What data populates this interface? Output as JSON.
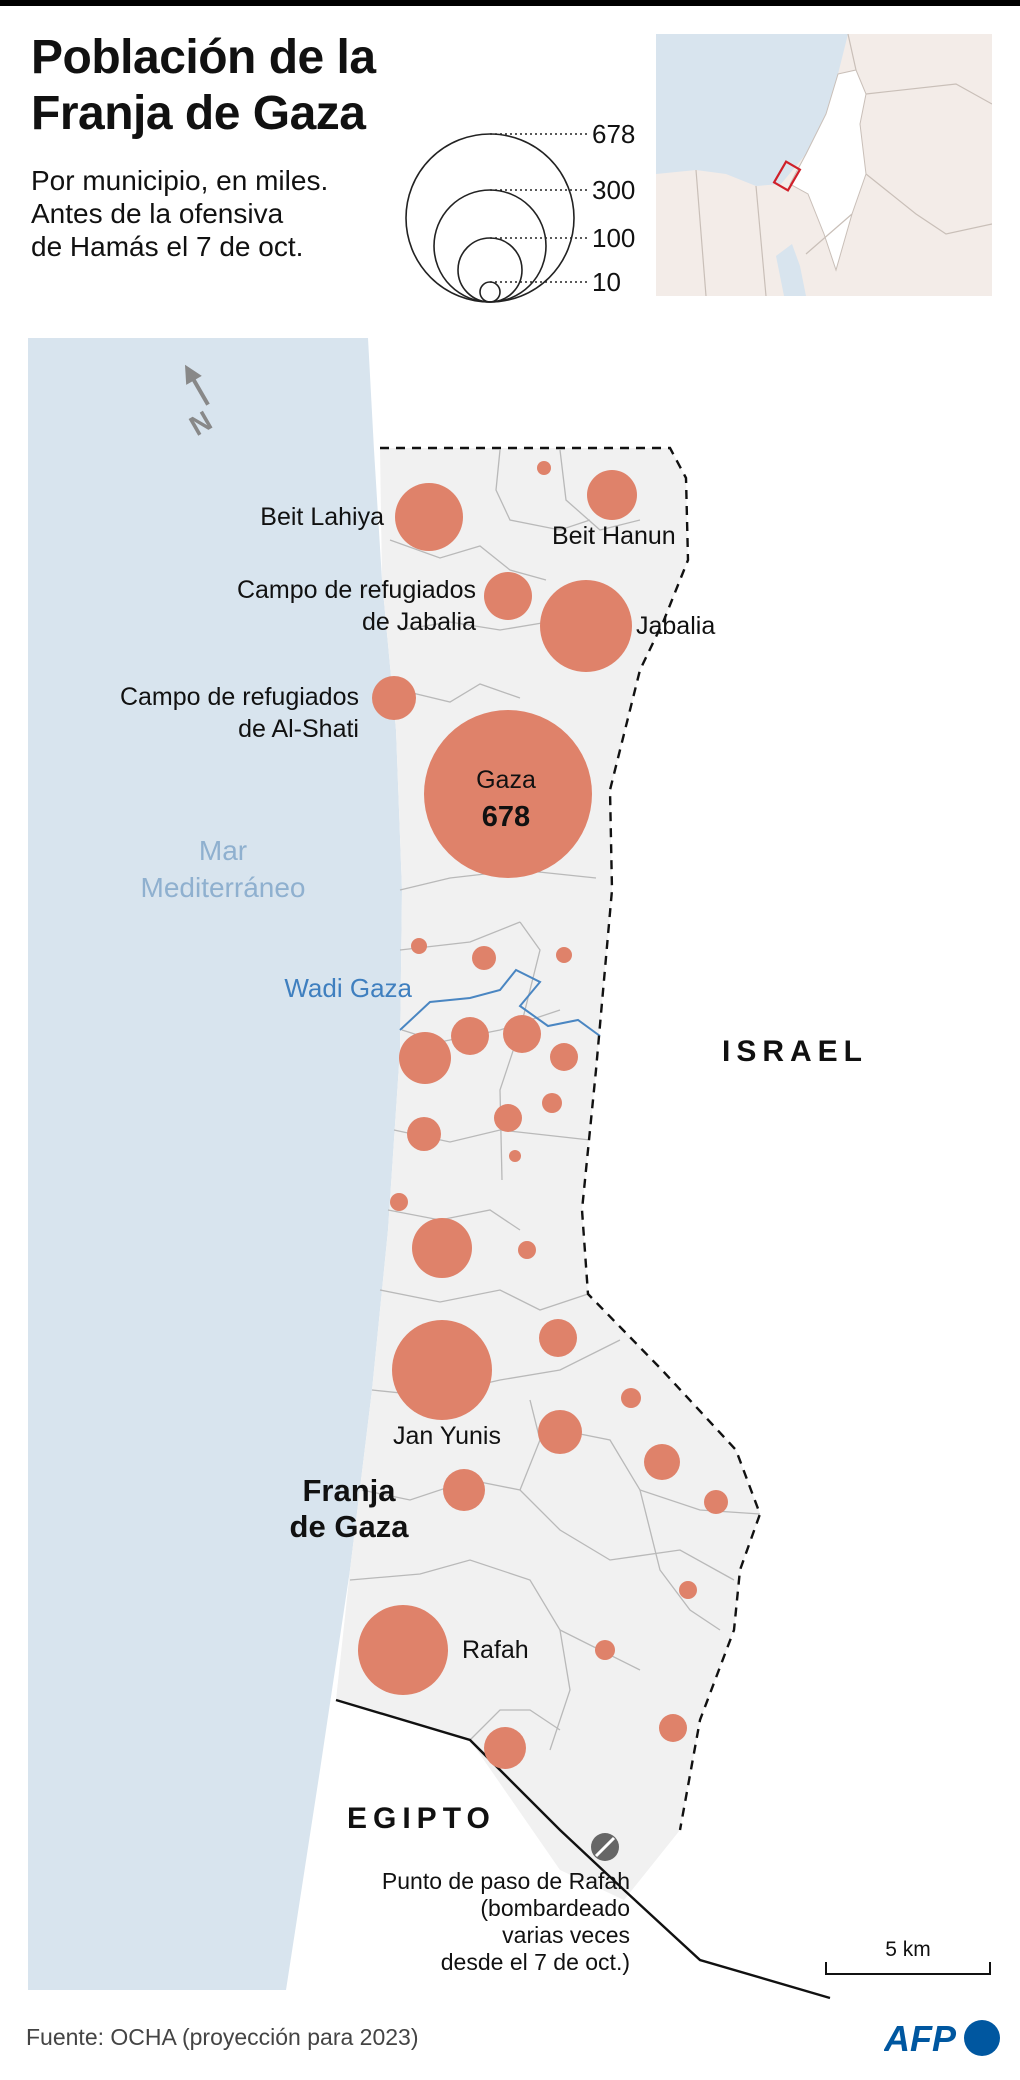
{
  "title": {
    "line1": "Población de la",
    "line2": "Franja de Gaza"
  },
  "subtitle": {
    "line1": "Por municipio, en miles.",
    "line2": "Antes de la ofensiva",
    "line3": "de Hamás el 7 de oct."
  },
  "legend": {
    "values": [
      "678",
      "300",
      "100",
      "10"
    ]
  },
  "map_labels": {
    "beit_lahiya": "Beit Lahiya",
    "beit_hanun": "Beit Hanun",
    "jabalia_camp_line1": "Campo de refugiados",
    "jabalia_camp_line2": "de Jabalia",
    "jabalia": "Jabalia",
    "al_shati_line1": "Campo de refugiados",
    "al_shati_line2": "de Al-Shati",
    "gaza": "Gaza",
    "gaza_value": "678",
    "sea_line1": "Mar",
    "sea_line2": "Mediterráneo",
    "wadi_gaza": "Wadi Gaza",
    "israel": "ISRAEL",
    "jan_yunis": "Jan Yunis",
    "strip_line1": "Franja",
    "strip_line2": "de Gaza",
    "rafah": "Rafah",
    "egipto": "EGIPTO",
    "crossing_line1": "Punto de paso de Rafah",
    "crossing_line2": "(bombardeado",
    "crossing_line3": "varias veces",
    "crossing_line4": "desde el 7 de oct.)",
    "north": "N",
    "scale": "5 km"
  },
  "source": "Fuente: OCHA (proyección para 2023)",
  "logo": "AFP",
  "colors": {
    "sea": "#d8e4ee",
    "land": "#f1f1f1",
    "circle": "#df826a",
    "logo": "#0057a0"
  }
}
